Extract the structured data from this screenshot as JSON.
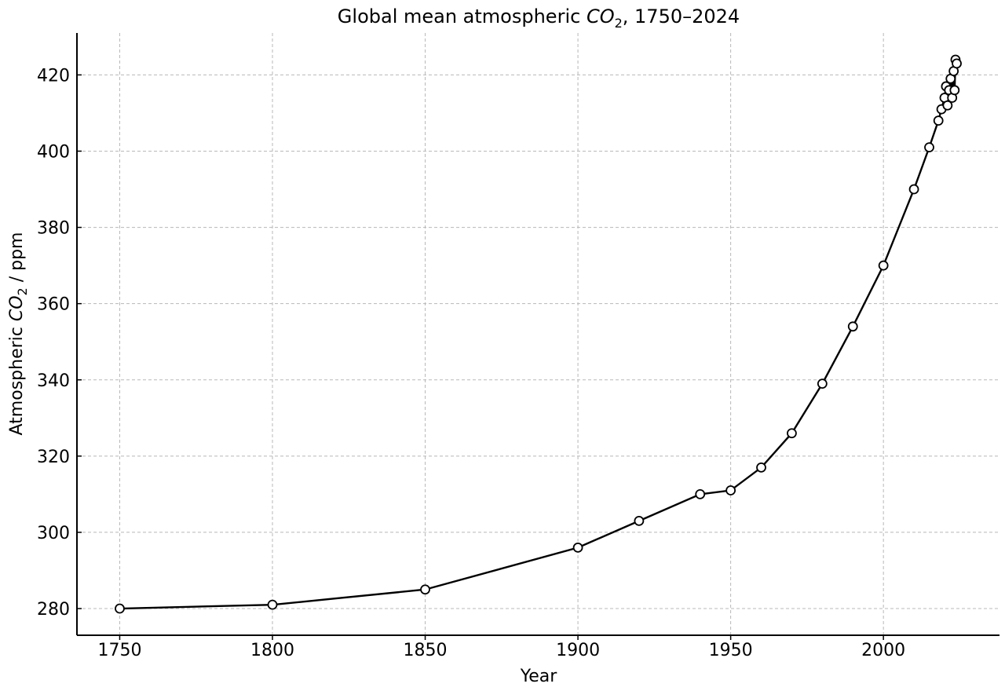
{
  "chart_data": {
    "type": "line",
    "title": "Global mean atmospheric CO₂, 1750–2024",
    "title_parts": {
      "prefix": "Global mean atmospheric ",
      "chem": "CO",
      "sub": "2",
      "suffix": ", 1750–2024"
    },
    "xlabel": "Year",
    "ylabel": "Atmospheric CO₂ / ppm",
    "ylabel_parts": {
      "prefix": "Atmospheric ",
      "chem": "CO",
      "sub": "2",
      "suffix": " / ppm"
    },
    "xlim": [
      1736,
      2038
    ],
    "ylim": [
      273,
      431
    ],
    "xticks": [
      1750,
      1800,
      1850,
      1900,
      1950,
      2000
    ],
    "yticks": [
      280,
      300,
      320,
      340,
      360,
      380,
      400,
      420
    ],
    "grid": true,
    "marker": "open-circle",
    "colors": {
      "line": "#000000",
      "marker_fill": "#ffffff",
      "grid": "#b8b8b8"
    },
    "series": [
      {
        "x": [
          1750,
          1800,
          1850,
          1900,
          1920,
          1940,
          1950,
          1960,
          1970,
          1980,
          1990,
          2000,
          2010,
          2015,
          2018,
          2019,
          2020,
          2020.5,
          2021,
          2021.5,
          2022,
          2022.5,
          2023,
          2023.3,
          2023.6,
          2024
        ],
        "y": [
          280,
          281,
          285,
          296,
          303,
          310,
          311,
          317,
          326,
          339,
          354,
          370,
          390,
          401,
          408,
          411,
          414,
          417,
          412,
          416,
          419,
          414,
          421,
          416,
          424,
          423
        ]
      }
    ]
  }
}
